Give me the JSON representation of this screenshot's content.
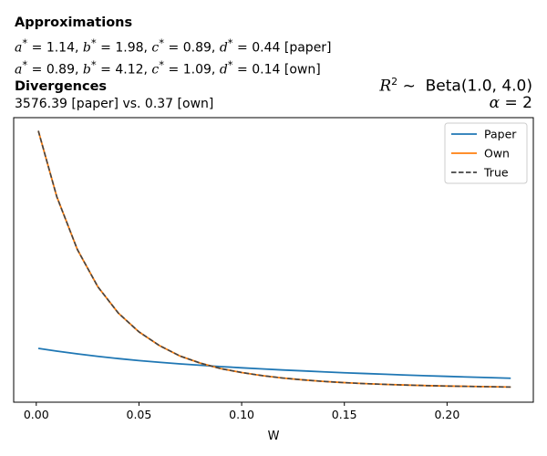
{
  "header": {
    "approx_title": "Approximations",
    "paper_line": {
      "a": "1.14",
      "b": "1.98",
      "c": "0.89",
      "d": "0.44",
      "tag": "[paper]"
    },
    "own_line": {
      "a": "0.89",
      "b": "4.12",
      "c": "1.09",
      "d": "0.14",
      "tag": "[own]"
    },
    "div_title": "Divergences",
    "div_text": "3576.39 [paper] vs. 0.37 [own]",
    "prior_label": "Beta(1.0, 4.0)",
    "alpha_value": "2"
  },
  "chart_data": {
    "type": "line",
    "xlabel": "W",
    "ylabel": "",
    "xlim": [
      -0.011,
      0.242
    ],
    "ylim": [
      -0.12,
      2.47
    ],
    "xticks": [
      "0.00",
      "0.05",
      "0.10",
      "0.15",
      "0.20"
    ],
    "xtick_values": [
      0.0,
      0.05,
      0.1,
      0.15,
      0.2
    ],
    "yticks_visible": false,
    "grid": false,
    "legend_position": "top-right",
    "x": [
      0.001,
      0.01,
      0.02,
      0.03,
      0.04,
      0.05,
      0.06,
      0.07,
      0.08,
      0.09,
      0.1,
      0.11,
      0.12,
      0.13,
      0.14,
      0.15,
      0.16,
      0.17,
      0.18,
      0.19,
      0.2,
      0.21,
      0.22,
      0.231
    ],
    "series": [
      {
        "name": "Paper",
        "color": "#1f77b4",
        "dash": "solid",
        "values": [
          0.37,
          0.345,
          0.32,
          0.297,
          0.277,
          0.259,
          0.243,
          0.229,
          0.216,
          0.204,
          0.193,
          0.183,
          0.173,
          0.165,
          0.156,
          0.148,
          0.141,
          0.134,
          0.127,
          0.121,
          0.115,
          0.109,
          0.104,
          0.098
        ]
      },
      {
        "name": "Own",
        "color": "#ff7f0e",
        "dash": "solid",
        "values": [
          2.35,
          1.75,
          1.27,
          0.93,
          0.69,
          0.52,
          0.395,
          0.3,
          0.235,
          0.185,
          0.15,
          0.122,
          0.1,
          0.083,
          0.069,
          0.058,
          0.049,
          0.042,
          0.036,
          0.031,
          0.027,
          0.024,
          0.021,
          0.018
        ]
      },
      {
        "name": "True",
        "color": "#444444",
        "dash": "dashed",
        "values": [
          2.35,
          1.75,
          1.27,
          0.93,
          0.69,
          0.52,
          0.395,
          0.3,
          0.235,
          0.185,
          0.15,
          0.122,
          0.1,
          0.083,
          0.069,
          0.058,
          0.049,
          0.042,
          0.036,
          0.031,
          0.027,
          0.024,
          0.021,
          0.018
        ]
      }
    ]
  }
}
